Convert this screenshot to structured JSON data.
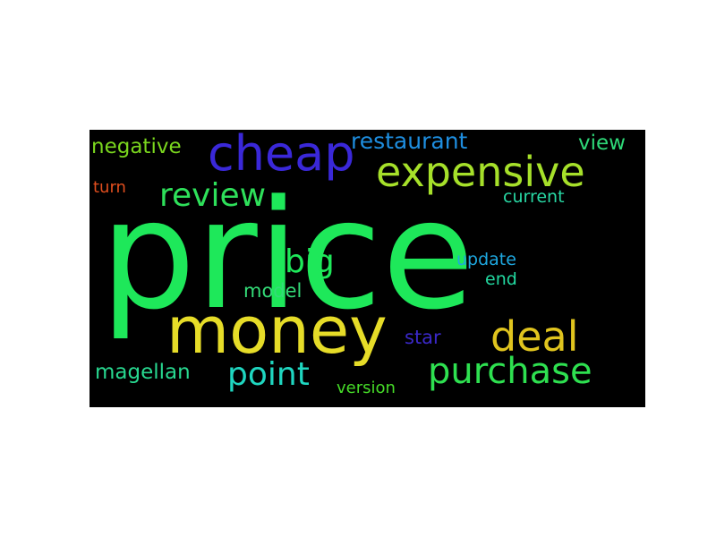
{
  "background": "#000000",
  "words": [
    {
      "key": "price",
      "text": "price",
      "color": "#1ee85a"
    },
    {
      "key": "money",
      "text": "money",
      "color": "#e6dc28"
    },
    {
      "key": "cheap",
      "text": "cheap",
      "color": "#3a28d8"
    },
    {
      "key": "expensive",
      "text": "expensive",
      "color": "#a6e02a"
    },
    {
      "key": "purchase",
      "text": "purchase",
      "color": "#2ee050"
    },
    {
      "key": "deal",
      "text": "deal",
      "color": "#e0c41e"
    },
    {
      "key": "review",
      "text": "review",
      "color": "#2ee05a"
    },
    {
      "key": "point",
      "text": "point",
      "color": "#1fd6c0"
    },
    {
      "key": "big",
      "text": "big",
      "color": "#1ee85a"
    },
    {
      "key": "restaurant",
      "text": "restaurant",
      "color": "#1e8ee0"
    },
    {
      "key": "negative",
      "text": "negative",
      "color": "#7ad61e"
    },
    {
      "key": "magellan",
      "text": "magellan",
      "color": "#28d890"
    },
    {
      "key": "model",
      "text": "model",
      "color": "#34dc78"
    },
    {
      "key": "star",
      "text": "star",
      "color": "#3a28c8"
    },
    {
      "key": "update",
      "text": "update",
      "color": "#1ea8e0"
    },
    {
      "key": "end",
      "text": "end",
      "color": "#22d8a0"
    },
    {
      "key": "view",
      "text": "view",
      "color": "#2ed878"
    },
    {
      "key": "current",
      "text": "current",
      "color": "#28d8a4"
    },
    {
      "key": "turn",
      "text": "turn",
      "color": "#e04e1e"
    },
    {
      "key": "version",
      "text": "version",
      "color": "#46dc28"
    }
  ]
}
